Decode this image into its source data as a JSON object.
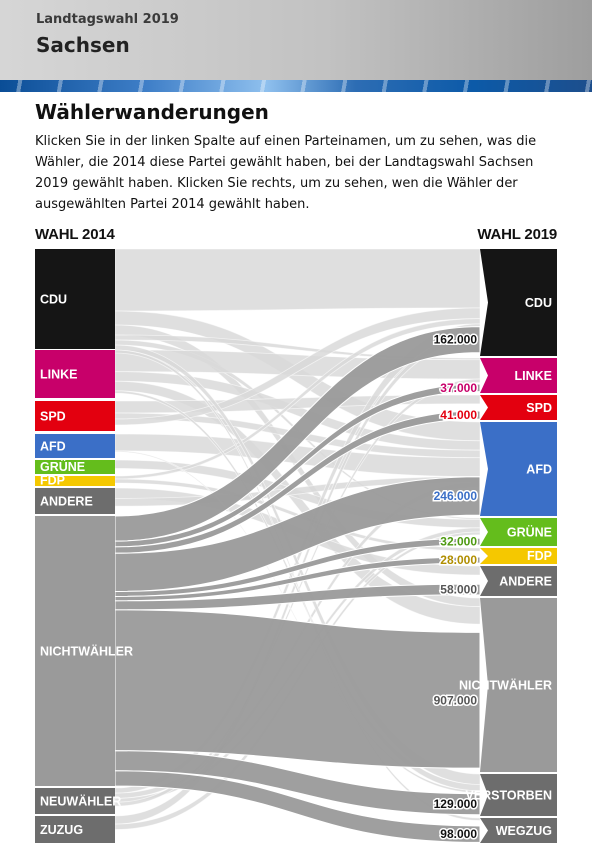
{
  "header": {
    "kicker": "Landtagswahl 2019",
    "title": "Sachsen"
  },
  "page_title": "Wählerwanderungen",
  "intro": "Klicken Sie in der linken Spalte auf einen Parteinamen, um zu sehen, was die Wähler, die 2014 diese Partei gewählt haben, bei der Landtagswahl Sachsen 2019 gewählt haben. Klicken Sie rechts, um zu sehen, wen die Wähler der ausgewählten Partei 2014 gewählt haben.",
  "left_header": "WAHL 2014",
  "right_header": "WAHL 2019",
  "left_nodes": [
    {
      "id": "cdu",
      "label": "CDU",
      "color": "#151515"
    },
    {
      "id": "linke",
      "label": "LINKE",
      "color": "#c8006a"
    },
    {
      "id": "spd",
      "label": "SPD",
      "color": "#e3000f"
    },
    {
      "id": "afd",
      "label": "AFD",
      "color": "#3b6fc7"
    },
    {
      "id": "gruene",
      "label": "GRÜNE",
      "color": "#64bd1c"
    },
    {
      "id": "fdp",
      "label": "FDP",
      "color": "#f5c800"
    },
    {
      "id": "andere",
      "label": "ANDERE",
      "color": "#6d6d6d"
    },
    {
      "id": "nichtwaehler",
      "label": "NICHTWÄHLER",
      "color": "#9a9a9a"
    },
    {
      "id": "neuwaehler",
      "label": "NEUWÄHLER",
      "color": "#6d6d6d"
    },
    {
      "id": "zuzug",
      "label": "ZUZUG",
      "color": "#6d6d6d"
    }
  ],
  "right_nodes": [
    {
      "id": "cdu",
      "label": "CDU",
      "color": "#151515"
    },
    {
      "id": "linke",
      "label": "LINKE",
      "color": "#c8006a"
    },
    {
      "id": "spd",
      "label": "SPD",
      "color": "#e3000f"
    },
    {
      "id": "afd",
      "label": "AFD",
      "color": "#3b6fc7"
    },
    {
      "id": "gruene",
      "label": "GRÜNE",
      "color": "#64bd1c"
    },
    {
      "id": "fdp",
      "label": "FDP",
      "color": "#f5c800"
    },
    {
      "id": "andere",
      "label": "ANDERE",
      "color": "#6d6d6d"
    },
    {
      "id": "nichtwaehler",
      "label": "NICHTWÄHLER",
      "color": "#9a9a9a"
    },
    {
      "id": "verstorben",
      "label": "VERSTORBEN",
      "color": "#6d6d6d"
    },
    {
      "id": "wegzug",
      "label": "WEGZUG",
      "color": "#6d6d6d"
    }
  ],
  "selected_source": "NICHTWÄHLER",
  "selected_flows": [
    {
      "target": "CDU",
      "value": 162000,
      "label": "162.000",
      "label_color": "#111111"
    },
    {
      "target": "LINKE",
      "value": 37000,
      "label": "37.000",
      "label_color": "#c8006a"
    },
    {
      "target": "SPD",
      "value": 41000,
      "label": "41.000",
      "label_color": "#e3000f"
    },
    {
      "target": "AFD",
      "value": 246000,
      "label": "246.000",
      "label_color": "#3b6fc7"
    },
    {
      "target": "GRÜNE",
      "value": 32000,
      "label": "32.000",
      "label_color": "#4e9a12"
    },
    {
      "target": "FDP",
      "value": 28000,
      "label": "28.000",
      "label_color": "#b08e00"
    },
    {
      "target": "ANDERE",
      "value": 58000,
      "label": "58.000",
      "label_color": "#555555"
    },
    {
      "target": "NICHTWÄHLER",
      "value": 907000,
      "label": "907.000",
      "label_color": "#555555"
    },
    {
      "target": "VERSTORBEN",
      "value": 129000,
      "label": "129.000",
      "label_color": "#111111"
    },
    {
      "target": "WEGZUG",
      "value": 98000,
      "label": "98.000",
      "label_color": "#111111"
    }
  ]
}
